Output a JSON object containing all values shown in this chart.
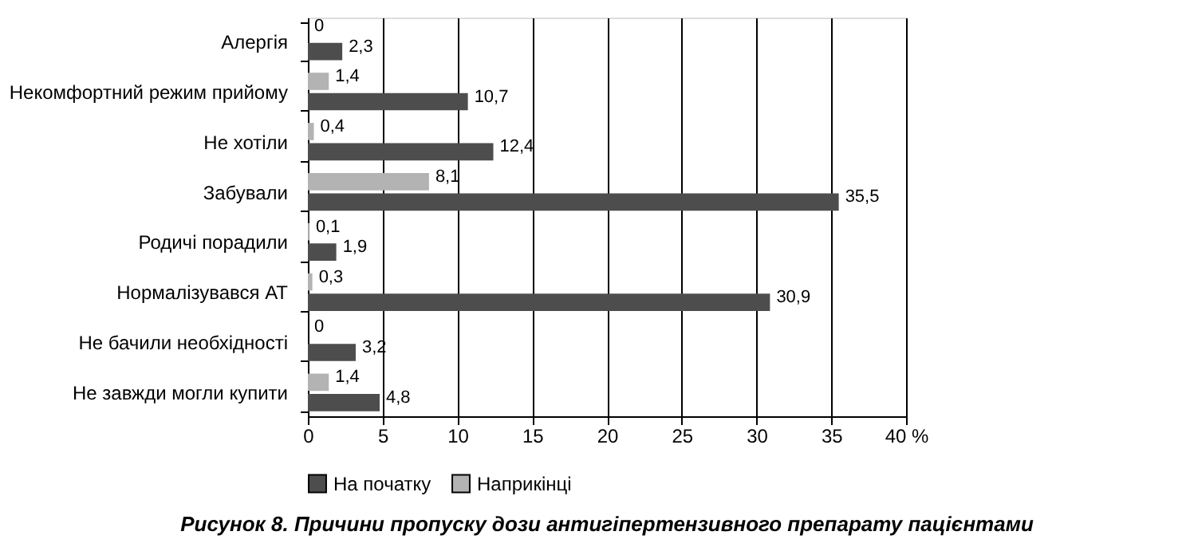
{
  "chart_data": {
    "type": "bar",
    "orientation": "horizontal",
    "title": "Рисунок 8. Причини пропуску дози антигіпертензивного препарату пацієнтами",
    "categories": [
      "Алергія",
      "Некомфортний режим прийому",
      "Не хотіли",
      "Забували",
      "Родичі порадили",
      "Нормалізувався АТ",
      "Не бачили необхідності",
      "Не завжди могли купити"
    ],
    "series": [
      {
        "name": "Наприкінці",
        "color": "#b3b3b3",
        "values": [
          0,
          1.4,
          0.4,
          8.1,
          0.1,
          0.3,
          0,
          1.4
        ],
        "value_labels": [
          "0",
          "1,4",
          "0,4",
          "8,1",
          "0,1",
          "0,3",
          "0",
          "1,4"
        ]
      },
      {
        "name": "На початку",
        "color": "#4d4d4d",
        "values": [
          2.3,
          10.7,
          12.4,
          35.5,
          1.9,
          30.9,
          3.2,
          4.8
        ],
        "value_labels": [
          "2,3",
          "10,7",
          "12,4",
          "35,5",
          "1,9",
          "30,9",
          "3,2",
          "4,8"
        ]
      }
    ],
    "xlim": [
      0,
      40
    ],
    "xticks": [
      0,
      5,
      10,
      15,
      20,
      25,
      30,
      35,
      {
        "value": 40,
        "label": "40 %"
      }
    ],
    "grid": "x",
    "legend": "bottom"
  }
}
